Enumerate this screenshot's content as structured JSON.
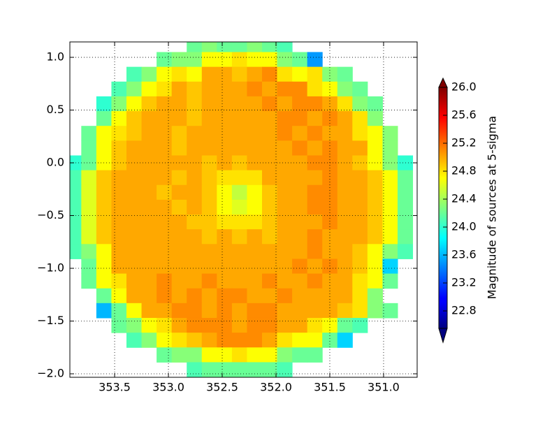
{
  "chart_data": {
    "type": "heatmap",
    "colormap": "jet",
    "grid": true,
    "xlim": [
      353.916,
      350.688
    ],
    "ylim": [
      -2.033,
      1.146
    ],
    "xticks": [
      353.5,
      {
        "value": 353.0,
        "label": "353.0"
      },
      352.5,
      {
        "value": 352.0,
        "label": "352.0"
      },
      351.5,
      {
        "value": 351.0,
        "label": "351.0"
      }
    ],
    "yticks": [
      {
        "value": 1.0,
        "label": "1.0"
      },
      0.5,
      {
        "value": 0.0,
        "label": "0.0"
      },
      {
        "value": -0.5,
        "label": "−0.5"
      },
      {
        "value": -1.0,
        "label": "−1.0"
      },
      {
        "value": -1.5,
        "label": "−1.5"
      },
      {
        "value": -2.0,
        "label": "−2.0"
      }
    ],
    "x": [
      353.88,
      353.74,
      353.6,
      353.46,
      353.32,
      353.18,
      353.04,
      352.9,
      352.76,
      352.62,
      352.48,
      352.34,
      352.2,
      352.06,
      351.92,
      351.78,
      351.64,
      351.5,
      351.36,
      351.22,
      351.08,
      350.94,
      350.8
    ],
    "y": [
      1.12,
      0.98,
      0.84,
      0.7,
      0.56,
      0.42,
      0.28,
      0.14,
      0.0,
      -0.14,
      -0.28,
      -0.42,
      -0.56,
      -0.7,
      -0.84,
      -0.98,
      -1.12,
      -1.26,
      -1.4,
      -1.54,
      -1.68,
      -1.82,
      -1.96
    ],
    "z": [
      [
        null,
        null,
        null,
        null,
        null,
        null,
        null,
        null,
        24.2,
        24.3,
        24.2,
        24.2,
        24.3,
        24.2,
        24.1,
        null,
        null,
        null,
        null,
        null,
        null,
        null,
        null
      ],
      [
        null,
        null,
        null,
        null,
        null,
        null,
        24.2,
        24.3,
        24.3,
        24.7,
        24.7,
        24.8,
        24.7,
        24.7,
        24.3,
        24.2,
        23.5,
        null,
        null,
        null,
        null,
        null,
        null
      ],
      [
        null,
        null,
        null,
        null,
        24.1,
        24.3,
        24.7,
        24.8,
        24.7,
        25.0,
        25.0,
        24.9,
        25.0,
        25.1,
        24.8,
        24.7,
        24.8,
        24.3,
        24.2,
        null,
        null,
        null,
        null
      ],
      [
        null,
        null,
        null,
        24.1,
        24.3,
        24.7,
        24.8,
        25.0,
        24.9,
        25.0,
        25.0,
        25.0,
        25.1,
        25.0,
        25.1,
        25.1,
        24.8,
        24.7,
        24.3,
        24.2,
        null,
        null,
        null
      ],
      [
        null,
        null,
        24.0,
        24.3,
        24.7,
        24.9,
        25.0,
        25.0,
        24.9,
        25.0,
        25.0,
        25.0,
        25.0,
        25.1,
        25.0,
        25.1,
        25.1,
        25.0,
        24.8,
        24.3,
        24.2,
        null,
        null
      ],
      [
        null,
        null,
        24.2,
        24.7,
        24.9,
        25.0,
        25.0,
        25.0,
        24.9,
        25.0,
        25.0,
        25.0,
        25.0,
        25.0,
        25.1,
        25.1,
        25.0,
        25.1,
        25.0,
        24.8,
        24.3,
        null,
        null
      ],
      [
        null,
        24.2,
        24.7,
        24.8,
        24.9,
        25.0,
        25.0,
        24.9,
        25.0,
        25.0,
        25.0,
        25.0,
        25.0,
        25.0,
        25.1,
        25.0,
        25.1,
        25.0,
        25.0,
        24.8,
        24.7,
        24.3,
        null
      ],
      [
        null,
        24.2,
        24.7,
        24.9,
        25.0,
        25.0,
        25.0,
        24.9,
        25.0,
        25.0,
        25.0,
        25.0,
        25.0,
        25.0,
        25.0,
        25.1,
        25.0,
        25.1,
        25.0,
        25.0,
        24.7,
        24.3,
        null
      ],
      [
        24.0,
        24.2,
        24.7,
        24.9,
        25.0,
        25.0,
        25.0,
        25.0,
        25.0,
        24.9,
        25.0,
        24.9,
        25.0,
        25.0,
        25.0,
        25.0,
        25.1,
        25.1,
        25.0,
        24.9,
        24.7,
        24.3,
        24.0
      ],
      [
        24.1,
        24.6,
        24.9,
        25.0,
        25.0,
        25.0,
        25.0,
        24.9,
        25.0,
        24.9,
        24.8,
        24.8,
        24.8,
        25.0,
        25.0,
        25.0,
        25.0,
        25.1,
        25.0,
        25.0,
        24.9,
        24.7,
        24.2
      ],
      [
        24.1,
        24.6,
        24.9,
        25.0,
        25.0,
        25.0,
        24.9,
        25.0,
        25.0,
        24.9,
        24.7,
        24.5,
        24.7,
        24.9,
        25.0,
        25.0,
        25.1,
        25.1,
        25.0,
        25.0,
        24.9,
        24.7,
        24.2
      ],
      [
        24.1,
        24.6,
        24.9,
        25.0,
        25.0,
        25.0,
        25.0,
        24.9,
        25.0,
        24.9,
        24.7,
        24.6,
        24.7,
        24.9,
        25.0,
        25.0,
        25.1,
        25.1,
        25.0,
        25.0,
        24.9,
        24.7,
        24.2
      ],
      [
        24.1,
        24.6,
        24.9,
        25.0,
        25.0,
        25.0,
        25.0,
        25.0,
        24.9,
        24.9,
        24.8,
        24.8,
        24.8,
        24.9,
        25.0,
        25.0,
        25.0,
        25.1,
        25.0,
        25.0,
        24.9,
        24.7,
        24.2
      ],
      [
        24.1,
        24.6,
        24.9,
        25.0,
        25.0,
        25.0,
        25.0,
        25.0,
        25.0,
        24.9,
        25.0,
        24.9,
        25.0,
        24.9,
        25.0,
        25.0,
        25.1,
        25.0,
        25.0,
        25.0,
        24.9,
        24.7,
        24.2
      ],
      [
        24.1,
        24.3,
        24.7,
        25.0,
        25.0,
        25.0,
        25.0,
        25.0,
        25.0,
        25.0,
        25.0,
        25.0,
        25.0,
        25.0,
        25.0,
        25.0,
        25.1,
        25.0,
        25.0,
        24.9,
        24.7,
        24.3,
        24.1
      ],
      [
        null,
        24.2,
        24.7,
        25.0,
        25.0,
        25.0,
        25.0,
        25.0,
        25.0,
        25.0,
        25.0,
        25.0,
        25.0,
        25.0,
        25.0,
        25.1,
        25.0,
        25.1,
        25.0,
        24.9,
        24.7,
        23.7,
        null
      ],
      [
        null,
        24.2,
        24.7,
        24.8,
        25.0,
        25.0,
        25.1,
        25.0,
        25.0,
        25.1,
        25.0,
        25.0,
        25.0,
        25.1,
        25.0,
        25.0,
        25.1,
        25.0,
        25.0,
        24.8,
        24.7,
        24.2,
        null
      ],
      [
        null,
        null,
        24.2,
        24.7,
        25.0,
        25.0,
        25.1,
        25.0,
        25.1,
        25.0,
        25.1,
        25.1,
        25.0,
        25.0,
        25.1,
        25.0,
        25.0,
        25.0,
        25.0,
        24.8,
        24.3,
        null,
        null
      ],
      [
        null,
        null,
        23.6,
        24.2,
        24.7,
        25.0,
        25.0,
        25.1,
        25.1,
        25.0,
        25.1,
        25.0,
        25.1,
        25.1,
        25.0,
        25.0,
        25.0,
        25.0,
        24.9,
        24.8,
        24.3,
        24.2,
        null
      ],
      [
        null,
        null,
        null,
        24.2,
        24.3,
        24.7,
        24.8,
        25.0,
        25.1,
        25.1,
        25.1,
        25.0,
        25.1,
        25.1,
        25.0,
        25.0,
        24.8,
        24.7,
        24.2,
        24.1,
        null,
        null,
        null
      ],
      [
        null,
        null,
        null,
        null,
        24.1,
        24.3,
        24.7,
        24.8,
        24.9,
        25.0,
        25.1,
        25.1,
        25.1,
        25.0,
        24.8,
        24.7,
        24.7,
        24.2,
        23.7,
        null,
        null,
        null,
        null
      ],
      [
        null,
        null,
        null,
        null,
        null,
        null,
        24.2,
        24.3,
        24.3,
        24.7,
        24.7,
        24.8,
        24.7,
        24.7,
        24.3,
        24.2,
        24.2,
        null,
        null,
        null,
        null,
        null,
        null
      ],
      [
        null,
        null,
        null,
        null,
        null,
        null,
        null,
        null,
        24.1,
        24.2,
        24.2,
        24.2,
        24.2,
        24.2,
        24.1,
        null,
        null,
        null,
        null,
        null,
        null,
        null,
        null
      ]
    ],
    "colorbar": {
      "label": "Magnitude of sources at 5-sigma",
      "clim": [
        22.55,
        26.0
      ],
      "extend": "both",
      "ticks": [
        {
          "value": 26.0,
          "label": "26.0"
        },
        25.6,
        25.2,
        24.8,
        24.4,
        {
          "value": 24.0,
          "label": "24.0"
        },
        23.6,
        23.2,
        22.8
      ]
    }
  }
}
